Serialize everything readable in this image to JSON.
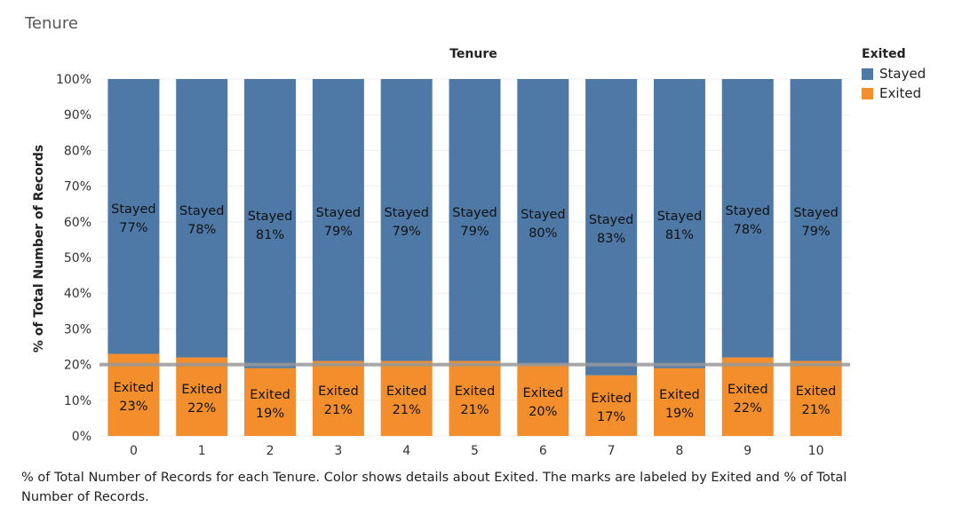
{
  "sheet_title": "Tenure",
  "caption": "% of Total Number of Records for each Tenure.  Color shows details about Exited.  The marks are labeled by Exited and % of Total Number of Records.",
  "legend": {
    "title": "Exited",
    "items": [
      {
        "label": "Stayed",
        "color": "#4e79a7"
      },
      {
        "label": "Exited",
        "color": "#f28e2b"
      }
    ]
  },
  "reference_line_color": "#999999",
  "chart_data": {
    "type": "bar",
    "stacked": true,
    "title": "Tenure",
    "xlabel": "",
    "ylabel": "% of Total Number of Records",
    "ylim": [
      0,
      100
    ],
    "yticks": [
      "0%",
      "10%",
      "20%",
      "30%",
      "40%",
      "50%",
      "60%",
      "70%",
      "80%",
      "90%",
      "100%"
    ],
    "categories": [
      "0",
      "1",
      "2",
      "3",
      "4",
      "5",
      "6",
      "7",
      "8",
      "9",
      "10"
    ],
    "series": [
      {
        "name": "Exited",
        "color": "#f28e2b",
        "values": [
          23,
          22,
          19,
          21,
          21,
          21,
          20,
          17,
          19,
          22,
          21
        ],
        "labels": [
          "23%",
          "22%",
          "19%",
          "21%",
          "21%",
          "21%",
          "20%",
          "17%",
          "19%",
          "22%",
          "21%"
        ]
      },
      {
        "name": "Stayed",
        "color": "#4e79a7",
        "values": [
          77,
          78,
          81,
          79,
          79,
          79,
          80,
          83,
          81,
          78,
          79
        ],
        "labels": [
          "77%",
          "78%",
          "81%",
          "79%",
          "79%",
          "79%",
          "80%",
          "83%",
          "81%",
          "78%",
          "79%"
        ]
      }
    ],
    "reference_line": 20,
    "grid": true,
    "legend_position": "right"
  }
}
